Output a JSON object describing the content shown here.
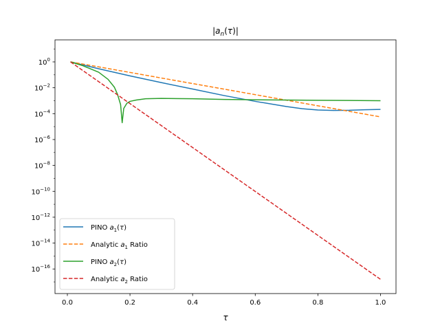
{
  "chart_data": {
    "type": "line",
    "title": "|a_n(τ)|",
    "xlabel": "τ",
    "ylabel": "",
    "xlim": [
      -0.0395,
      1.0495
    ],
    "ylim_log10": [
      -17.9,
      1.7
    ],
    "yscale": "log",
    "grid": false,
    "legend_position": "lower-left",
    "x_ticks": [
      0.0,
      0.2,
      0.4,
      0.6,
      0.8,
      1.0
    ],
    "x_tick_labels": [
      "0.0",
      "0.2",
      "0.4",
      "0.6",
      "0.8",
      "1.0"
    ],
    "y_tick_exponents": [
      0,
      -2,
      -4,
      -6,
      -8,
      -10,
      -12,
      -14,
      -16
    ],
    "series": [
      {
        "name": "PINO a_1(τ)",
        "legend_prefix": "PINO ",
        "legend_symbol": "a",
        "legend_sub": "1",
        "legend_suffix": "(τ)",
        "style": "solid",
        "color": "#1f77b4",
        "x": [
          0.01,
          0.1,
          0.2,
          0.3,
          0.4,
          0.5,
          0.6,
          0.7,
          0.75,
          0.8,
          0.85,
          0.9,
          0.95,
          1.0
        ],
        "log10y": [
          0.0,
          -0.53,
          -1.08,
          -1.6,
          -2.1,
          -2.6,
          -3.05,
          -3.45,
          -3.62,
          -3.72,
          -3.75,
          -3.74,
          -3.7,
          -3.67
        ]
      },
      {
        "name": "Analytic a_1 Ratio",
        "legend_prefix": "Analytic ",
        "legend_symbol": "a",
        "legend_sub": "1",
        "legend_suffix": " Ratio",
        "style": "dashed",
        "color": "#ff7f0e",
        "x": [
          0.01,
          1.0
        ],
        "log10y": [
          0.0,
          -4.25
        ]
      },
      {
        "name": "PINO a_2(τ)",
        "legend_prefix": "PINO ",
        "legend_symbol": "a",
        "legend_sub": "2",
        "legend_suffix": "(τ)",
        "style": "solid",
        "color": "#2ca02c",
        "x": [
          0.01,
          0.05,
          0.1,
          0.13,
          0.15,
          0.16,
          0.17,
          0.175,
          0.18,
          0.19,
          0.2,
          0.22,
          0.25,
          0.3,
          0.4,
          0.5,
          0.6,
          0.7,
          0.8,
          0.9,
          1.0
        ],
        "log10y": [
          0.0,
          -0.3,
          -0.8,
          -1.35,
          -1.95,
          -2.5,
          -3.3,
          -4.7,
          -3.6,
          -3.2,
          -3.05,
          -2.95,
          -2.85,
          -2.82,
          -2.85,
          -2.9,
          -2.93,
          -2.95,
          -2.97,
          -2.98,
          -3.0
        ]
      },
      {
        "name": "Analytic a_2 Ratio",
        "legend_prefix": "Analytic ",
        "legend_symbol": "a",
        "legend_sub": "2",
        "legend_suffix": " Ratio",
        "style": "dashed",
        "color": "#d62728",
        "x": [
          0.01,
          1.0
        ],
        "log10y": [
          0.0,
          -16.8
        ]
      }
    ]
  }
}
